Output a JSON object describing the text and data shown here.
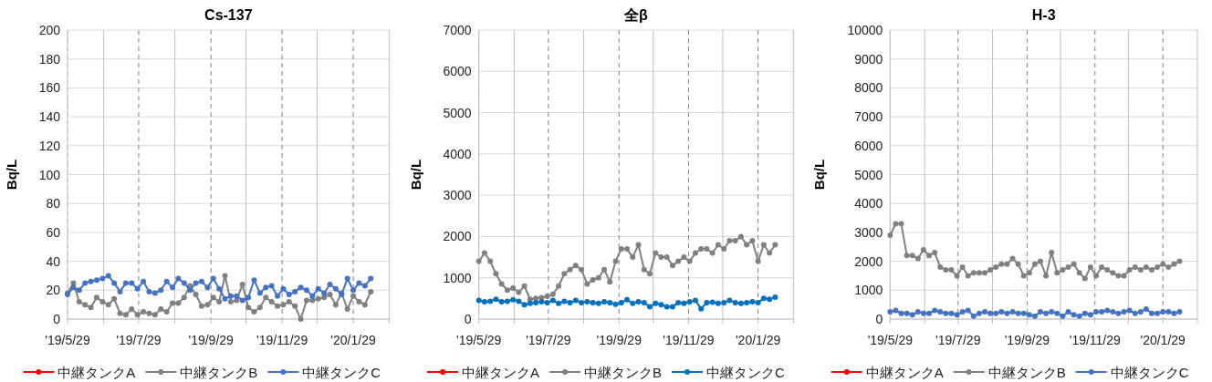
{
  "chart_data": [
    {
      "type": "line",
      "title": "Cs-137",
      "ylabel": "Bq/L",
      "xlim": [
        "2019-05-29",
        "2020-02-29"
      ],
      "xticks": [
        {
          "value": "2019-05-29",
          "label": "'19/5/29"
        },
        {
          "value": "2019-06-29",
          "label": null
        },
        {
          "value": "2019-07-29",
          "label": "'19/7/29"
        },
        {
          "value": "2019-08-29",
          "label": null
        },
        {
          "value": "2019-09-29",
          "label": "'19/9/29"
        },
        {
          "value": "2019-10-29",
          "label": null
        },
        {
          "value": "2019-11-29",
          "label": "'19/11/29"
        },
        {
          "value": "2019-12-29",
          "label": null
        },
        {
          "value": "2020-01-29",
          "label": "'20/1/29"
        },
        {
          "value": "2020-02-29",
          "label": null
        }
      ],
      "ylim": [
        0,
        200
      ],
      "yticks": [
        0,
        20,
        40,
        60,
        80,
        100,
        120,
        140,
        160,
        180,
        200
      ],
      "grid": true,
      "legend": "bottom",
      "marker": "circle",
      "x": [
        "2019-05-29",
        "2019-06-03",
        "2019-06-08",
        "2019-06-13",
        "2019-06-18",
        "2019-06-23",
        "2019-06-28",
        "2019-07-03",
        "2019-07-08",
        "2019-07-13",
        "2019-07-18",
        "2019-07-23",
        "2019-07-28",
        "2019-08-02",
        "2019-08-07",
        "2019-08-12",
        "2019-08-17",
        "2019-08-22",
        "2019-08-27",
        "2019-09-01",
        "2019-09-06",
        "2019-09-11",
        "2019-09-16",
        "2019-09-21",
        "2019-09-26",
        "2019-10-01",
        "2019-10-06",
        "2019-10-11",
        "2019-10-16",
        "2019-10-21",
        "2019-10-26",
        "2019-10-31",
        "2019-11-05",
        "2019-11-10",
        "2019-11-15",
        "2019-11-20",
        "2019-11-25",
        "2019-11-30",
        "2019-12-05",
        "2019-12-10",
        "2019-12-15",
        "2019-12-20",
        "2019-12-25",
        "2019-12-30",
        "2020-01-04",
        "2020-01-09",
        "2020-01-14",
        "2020-01-19",
        "2020-01-24",
        "2020-01-29",
        "2020-02-03",
        "2020-02-08",
        "2020-02-13"
      ],
      "series": [
        {
          "name": "中継タンクA",
          "color": "#ff0000",
          "values": [
            null,
            null,
            null,
            null,
            null,
            null,
            null,
            null,
            null,
            null,
            null,
            null,
            null,
            null,
            null,
            null,
            null,
            null,
            null,
            null,
            null,
            null,
            null,
            null,
            null,
            null,
            null,
            null,
            null,
            null,
            null,
            null,
            null,
            null,
            null,
            null,
            null,
            null,
            null,
            null,
            null,
            null,
            null,
            null,
            null,
            null,
            null,
            null,
            null,
            null,
            null,
            null,
            null
          ]
        },
        {
          "name": "中継タンクB",
          "color": "#808080",
          "values": [
            18,
            25,
            12,
            10,
            8,
            15,
            12,
            10,
            14,
            4,
            3,
            7,
            3,
            5,
            4,
            3,
            7,
            5,
            11,
            11,
            15,
            23,
            17,
            9,
            10,
            15,
            12,
            30,
            12,
            13,
            24,
            8,
            5,
            8,
            15,
            12,
            9,
            10,
            12,
            9,
            0,
            13,
            13,
            14,
            15,
            17,
            10,
            18,
            7,
            16,
            12,
            10,
            19
          ]
        },
        {
          "name": "中継タンクC",
          "color": "#4472c4",
          "values": [
            17,
            22,
            20,
            25,
            26,
            27,
            28,
            30,
            25,
            19,
            25,
            25,
            21,
            26,
            19,
            18,
            20,
            26,
            22,
            28,
            25,
            20,
            25,
            26,
            22,
            28,
            21,
            14,
            16,
            16,
            13,
            15,
            27,
            18,
            22,
            23,
            16,
            21,
            17,
            19,
            22,
            20,
            16,
            21,
            18,
            24,
            21,
            17,
            28,
            20,
            25,
            23,
            28
          ]
        }
      ]
    },
    {
      "type": "line",
      "title": "全β",
      "ylabel": "Bq/L",
      "xlim": [
        "2019-05-29",
        "2020-02-29"
      ],
      "xticks": [
        {
          "value": "2019-05-29",
          "label": "'19/5/29"
        },
        {
          "value": "2019-06-29",
          "label": null
        },
        {
          "value": "2019-07-29",
          "label": "'19/7/29"
        },
        {
          "value": "2019-08-29",
          "label": null
        },
        {
          "value": "2019-09-29",
          "label": "'19/9/29"
        },
        {
          "value": "2019-10-29",
          "label": null
        },
        {
          "value": "2019-11-29",
          "label": "'19/11/29"
        },
        {
          "value": "2019-12-29",
          "label": null
        },
        {
          "value": "2020-01-29",
          "label": "'20/1/29"
        },
        {
          "value": "2020-02-29",
          "label": null
        }
      ],
      "ylim": [
        0,
        7000
      ],
      "yticks": [
        0,
        1000,
        2000,
        3000,
        4000,
        5000,
        6000,
        7000
      ],
      "grid": true,
      "legend": "bottom",
      "marker": "circle",
      "x": [
        "2019-05-29",
        "2019-06-03",
        "2019-06-08",
        "2019-06-13",
        "2019-06-18",
        "2019-06-23",
        "2019-06-28",
        "2019-07-03",
        "2019-07-08",
        "2019-07-13",
        "2019-07-18",
        "2019-07-23",
        "2019-07-28",
        "2019-08-02",
        "2019-08-07",
        "2019-08-12",
        "2019-08-17",
        "2019-08-22",
        "2019-08-27",
        "2019-09-01",
        "2019-09-06",
        "2019-09-11",
        "2019-09-16",
        "2019-09-21",
        "2019-09-26",
        "2019-10-01",
        "2019-10-06",
        "2019-10-11",
        "2019-10-16",
        "2019-10-21",
        "2019-10-26",
        "2019-10-31",
        "2019-11-05",
        "2019-11-10",
        "2019-11-15",
        "2019-11-20",
        "2019-11-25",
        "2019-11-30",
        "2019-12-05",
        "2019-12-10",
        "2019-12-15",
        "2019-12-20",
        "2019-12-25",
        "2019-12-30",
        "2020-01-04",
        "2020-01-09",
        "2020-01-14",
        "2020-01-19",
        "2020-01-24",
        "2020-01-29",
        "2020-02-03",
        "2020-02-08",
        "2020-02-13"
      ],
      "series": [
        {
          "name": "中継タンクA",
          "color": "#ff0000",
          "values": [
            null,
            null,
            null,
            null,
            null,
            null,
            null,
            null,
            null,
            null,
            null,
            null,
            null,
            null,
            null,
            null,
            null,
            null,
            null,
            null,
            null,
            null,
            null,
            null,
            null,
            null,
            null,
            null,
            null,
            null,
            null,
            null,
            null,
            null,
            null,
            null,
            null,
            null,
            null,
            null,
            null,
            null,
            null,
            null,
            null,
            null,
            null,
            null,
            null,
            null,
            null,
            null,
            null
          ]
        },
        {
          "name": "中継タンクB",
          "color": "#808080",
          "values": [
            1400,
            1600,
            1400,
            1100,
            850,
            700,
            750,
            650,
            800,
            480,
            500,
            520,
            550,
            600,
            800,
            1100,
            1200,
            1300,
            1200,
            850,
            950,
            1000,
            1200,
            900,
            1400,
            1700,
            1700,
            1500,
            1800,
            1200,
            1100,
            1600,
            1500,
            1500,
            1300,
            1400,
            1500,
            1400,
            1600,
            1700,
            1700,
            1600,
            1800,
            1700,
            1900,
            1900,
            2000,
            1800,
            1900,
            1400,
            1800,
            1600,
            1800
          ]
        },
        {
          "name": "中継タンクC",
          "color": "#0070c0",
          "values": [
            450,
            420,
            430,
            480,
            420,
            430,
            470,
            430,
            350,
            380,
            400,
            420,
            400,
            450,
            380,
            430,
            400,
            450,
            400,
            420,
            400,
            380,
            420,
            400,
            360,
            400,
            470,
            380,
            420,
            400,
            300,
            380,
            350,
            300,
            300,
            400,
            380,
            420,
            450,
            250,
            400,
            410,
            380,
            400,
            450,
            400,
            380,
            400,
            420,
            400,
            500,
            480,
            530
          ]
        }
      ]
    },
    {
      "type": "line",
      "title": "H-3",
      "ylabel": "Bq/L",
      "xlim": [
        "2019-05-29",
        "2020-02-29"
      ],
      "xticks": [
        {
          "value": "2019-05-29",
          "label": "'19/5/29"
        },
        {
          "value": "2019-06-29",
          "label": null
        },
        {
          "value": "2019-07-29",
          "label": "'19/7/29"
        },
        {
          "value": "2019-08-29",
          "label": null
        },
        {
          "value": "2019-09-29",
          "label": "'19/9/29"
        },
        {
          "value": "2019-10-29",
          "label": null
        },
        {
          "value": "2019-11-29",
          "label": "'19/11/29"
        },
        {
          "value": "2019-12-29",
          "label": null
        },
        {
          "value": "2020-01-29",
          "label": "'20/1/29"
        },
        {
          "value": "2020-02-29",
          "label": null
        }
      ],
      "ylim": [
        0,
        10000
      ],
      "yticks": [
        0,
        1000,
        2000,
        3000,
        4000,
        5000,
        6000,
        7000,
        8000,
        9000,
        10000
      ],
      "grid": true,
      "legend": "bottom",
      "marker": "circle",
      "x": [
        "2019-05-29",
        "2019-06-03",
        "2019-06-08",
        "2019-06-13",
        "2019-06-18",
        "2019-06-23",
        "2019-06-28",
        "2019-07-03",
        "2019-07-08",
        "2019-07-13",
        "2019-07-18",
        "2019-07-23",
        "2019-07-28",
        "2019-08-02",
        "2019-08-07",
        "2019-08-12",
        "2019-08-17",
        "2019-08-22",
        "2019-08-27",
        "2019-09-01",
        "2019-09-06",
        "2019-09-11",
        "2019-09-16",
        "2019-09-21",
        "2019-09-26",
        "2019-10-01",
        "2019-10-06",
        "2019-10-11",
        "2019-10-16",
        "2019-10-21",
        "2019-10-26",
        "2019-10-31",
        "2019-11-05",
        "2019-11-10",
        "2019-11-15",
        "2019-11-20",
        "2019-11-25",
        "2019-11-30",
        "2019-12-05",
        "2019-12-10",
        "2019-12-15",
        "2019-12-20",
        "2019-12-25",
        "2019-12-30",
        "2020-01-04",
        "2020-01-09",
        "2020-01-14",
        "2020-01-19",
        "2020-01-24",
        "2020-01-29",
        "2020-02-03",
        "2020-02-08",
        "2020-02-13"
      ],
      "series": [
        {
          "name": "中継タンクA",
          "color": "#ff0000",
          "values": [
            null,
            null,
            null,
            null,
            null,
            null,
            null,
            null,
            null,
            null,
            null,
            null,
            null,
            null,
            null,
            null,
            null,
            null,
            null,
            null,
            null,
            null,
            null,
            null,
            null,
            null,
            null,
            null,
            null,
            null,
            null,
            null,
            null,
            null,
            null,
            null,
            null,
            null,
            null,
            null,
            null,
            null,
            null,
            null,
            null,
            null,
            null,
            null,
            null,
            null,
            null,
            null,
            null
          ]
        },
        {
          "name": "中継タンクB",
          "color": "#808080",
          "values": [
            2900,
            3300,
            3300,
            2200,
            2200,
            2100,
            2400,
            2200,
            2300,
            1800,
            1700,
            1700,
            1500,
            1800,
            1500,
            1600,
            1600,
            1600,
            1700,
            1800,
            1900,
            1900,
            2100,
            1900,
            1500,
            1600,
            1900,
            2000,
            1500,
            2300,
            1600,
            1700,
            1800,
            1900,
            1600,
            1400,
            1800,
            1500,
            1800,
            1700,
            1600,
            1500,
            1500,
            1700,
            1800,
            1700,
            1800,
            1700,
            1800,
            1900,
            1800,
            1900,
            2000
          ]
        },
        {
          "name": "中継タンクC",
          "color": "#4472c4",
          "values": [
            250,
            300,
            200,
            200,
            150,
            250,
            200,
            200,
            300,
            250,
            200,
            200,
            150,
            250,
            300,
            100,
            200,
            250,
            200,
            200,
            250,
            200,
            250,
            200,
            200,
            150,
            100,
            250,
            200,
            250,
            200,
            100,
            250,
            150,
            100,
            200,
            150,
            250,
            250,
            300,
            250,
            200,
            250,
            300,
            200,
            250,
            350,
            200,
            200,
            250,
            250,
            200,
            250
          ]
        }
      ]
    }
  ]
}
